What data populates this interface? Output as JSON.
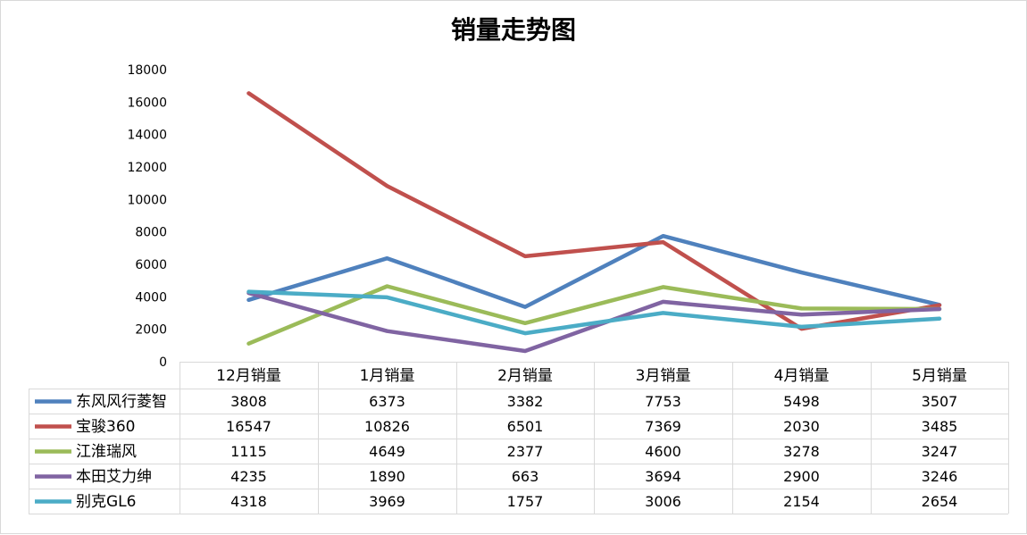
{
  "chart_data": {
    "type": "line",
    "title": "销量走势图",
    "categories": [
      "12月销量",
      "1月销量",
      "2月销量",
      "3月销量",
      "4月销量",
      "5月销量"
    ],
    "ylim": [
      0,
      18000
    ],
    "yticks": [
      0,
      2000,
      4000,
      6000,
      8000,
      10000,
      12000,
      14000,
      16000,
      18000
    ],
    "grid": false,
    "legend": "data-table",
    "series": [
      {
        "name": "东风风行菱智",
        "color": "#4f81bd",
        "values": [
          3808,
          6373,
          3382,
          7753,
          5498,
          3507
        ]
      },
      {
        "name": "宝骏360",
        "color": "#c0504d",
        "values": [
          16547,
          10826,
          6501,
          7369,
          2030,
          3485
        ]
      },
      {
        "name": "江淮瑞风",
        "color": "#9bbb59",
        "values": [
          1115,
          4649,
          2377,
          4600,
          3278,
          3247
        ]
      },
      {
        "name": "本田艾力绅",
        "color": "#8064a2",
        "values": [
          4235,
          1890,
          663,
          3694,
          2900,
          3246
        ]
      },
      {
        "name": "别克GL6",
        "color": "#4bacc6",
        "values": [
          4318,
          3969,
          1757,
          3006,
          2154,
          2654
        ]
      }
    ]
  }
}
